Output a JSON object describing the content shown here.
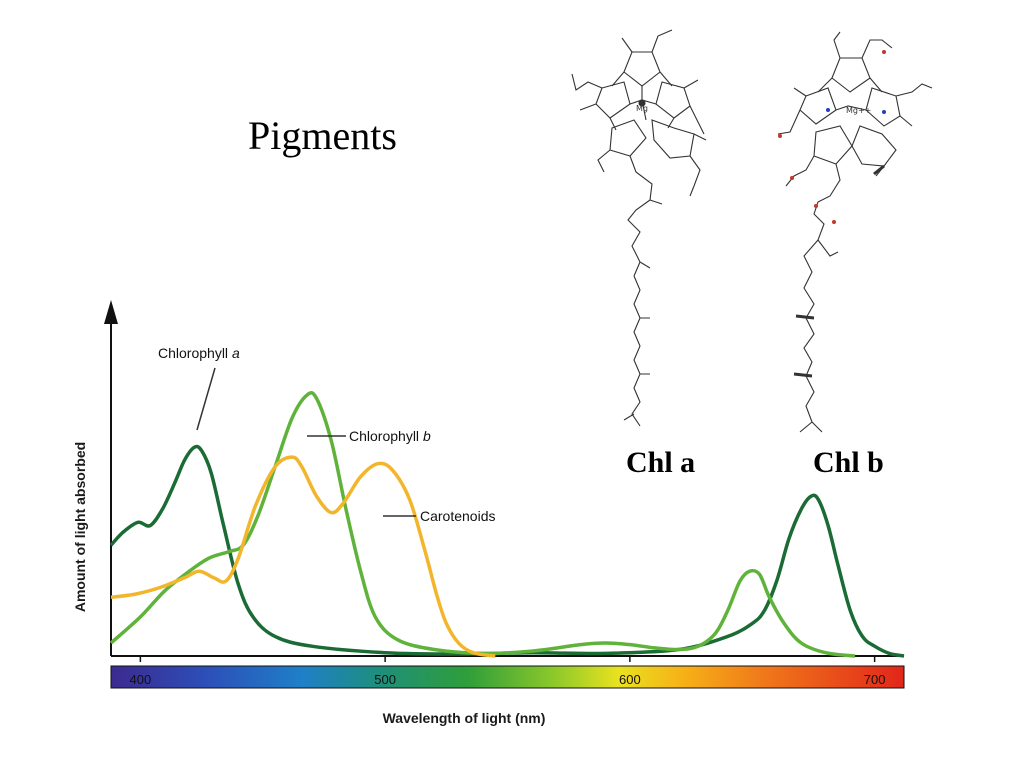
{
  "slide": {
    "title": "Pigments"
  },
  "molecules": [
    {
      "name": "Chl a",
      "metal_label": "Mg"
    },
    {
      "name": "Chl b",
      "metal_label": "Mg++"
    }
  ],
  "chart_data": {
    "type": "line",
    "title": "",
    "xlabel": "Wavelength of light (nm)",
    "ylabel": "Amount of light absorbed",
    "xlim": [
      388,
      712
    ],
    "ylim": [
      0,
      1.0
    ],
    "x_ticks": [
      400,
      500,
      600,
      700
    ],
    "x_tick_labels": [
      "400",
      "500",
      "600",
      "700"
    ],
    "grid": false,
    "legend": "inline-callouts",
    "spectrum_bar": true,
    "series": [
      {
        "name": "Chlorophyll a",
        "color": "#1b6b35",
        "points": [
          [
            388,
            0.34
          ],
          [
            393,
            0.38
          ],
          [
            399,
            0.41
          ],
          [
            404,
            0.4
          ],
          [
            409,
            0.45
          ],
          [
            414,
            0.53
          ],
          [
            418,
            0.6
          ],
          [
            422,
            0.64
          ],
          [
            425,
            0.63
          ],
          [
            429,
            0.56
          ],
          [
            434,
            0.4
          ],
          [
            440,
            0.22
          ],
          [
            446,
            0.12
          ],
          [
            455,
            0.06
          ],
          [
            470,
            0.03
          ],
          [
            500,
            0.01
          ],
          [
            530,
            0.006
          ],
          [
            560,
            0.01
          ],
          [
            590,
            0.008
          ],
          [
            620,
            0.02
          ],
          [
            640,
            0.06
          ],
          [
            650,
            0.1
          ],
          [
            655,
            0.14
          ],
          [
            660,
            0.23
          ],
          [
            665,
            0.36
          ],
          [
            670,
            0.45
          ],
          [
            674,
            0.49
          ],
          [
            677,
            0.48
          ],
          [
            681,
            0.4
          ],
          [
            685,
            0.28
          ],
          [
            690,
            0.14
          ],
          [
            695,
            0.06
          ],
          [
            700,
            0.03
          ],
          [
            706,
            0.008
          ],
          [
            712,
            0.0
          ]
        ]
      },
      {
        "name": "Chlorophyll b",
        "color": "#5fb33a",
        "points": [
          [
            388,
            0.04
          ],
          [
            400,
            0.12
          ],
          [
            410,
            0.2
          ],
          [
            420,
            0.26
          ],
          [
            428,
            0.3
          ],
          [
            436,
            0.32
          ],
          [
            442,
            0.34
          ],
          [
            448,
            0.43
          ],
          [
            455,
            0.58
          ],
          [
            462,
            0.73
          ],
          [
            468,
            0.8
          ],
          [
            472,
            0.79
          ],
          [
            478,
            0.66
          ],
          [
            484,
            0.45
          ],
          [
            490,
            0.26
          ],
          [
            496,
            0.12
          ],
          [
            505,
            0.05
          ],
          [
            520,
            0.02
          ],
          [
            540,
            0.008
          ],
          [
            560,
            0.015
          ],
          [
            580,
            0.035
          ],
          [
            590,
            0.04
          ],
          [
            600,
            0.035
          ],
          [
            610,
            0.025
          ],
          [
            620,
            0.02
          ],
          [
            628,
            0.03
          ],
          [
            635,
            0.07
          ],
          [
            640,
            0.14
          ],
          [
            645,
            0.23
          ],
          [
            649,
            0.26
          ],
          [
            653,
            0.25
          ],
          [
            657,
            0.18
          ],
          [
            663,
            0.1
          ],
          [
            670,
            0.04
          ],
          [
            680,
            0.01
          ],
          [
            692,
            0.0
          ]
        ]
      },
      {
        "name": "Carotenoids",
        "color": "#f2b52c",
        "points": [
          [
            388,
            0.18
          ],
          [
            398,
            0.19
          ],
          [
            408,
            0.21
          ],
          [
            418,
            0.24
          ],
          [
            424,
            0.26
          ],
          [
            430,
            0.24
          ],
          [
            435,
            0.23
          ],
          [
            440,
            0.3
          ],
          [
            447,
            0.46
          ],
          [
            455,
            0.58
          ],
          [
            462,
            0.61
          ],
          [
            466,
            0.58
          ],
          [
            472,
            0.49
          ],
          [
            478,
            0.44
          ],
          [
            483,
            0.47
          ],
          [
            490,
            0.55
          ],
          [
            497,
            0.59
          ],
          [
            503,
            0.57
          ],
          [
            510,
            0.48
          ],
          [
            516,
            0.33
          ],
          [
            521,
            0.19
          ],
          [
            525,
            0.1
          ],
          [
            530,
            0.04
          ],
          [
            536,
            0.01
          ],
          [
            545,
            0.0
          ]
        ]
      }
    ],
    "annotations": [
      {
        "series": "Chlorophyll a",
        "text": "Chlorophyll",
        "italic": "a"
      },
      {
        "series": "Chlorophyll b",
        "text": "Chlorophyll",
        "italic": "b"
      },
      {
        "series": "Carotenoids",
        "text": "Carotenoids"
      }
    ]
  }
}
